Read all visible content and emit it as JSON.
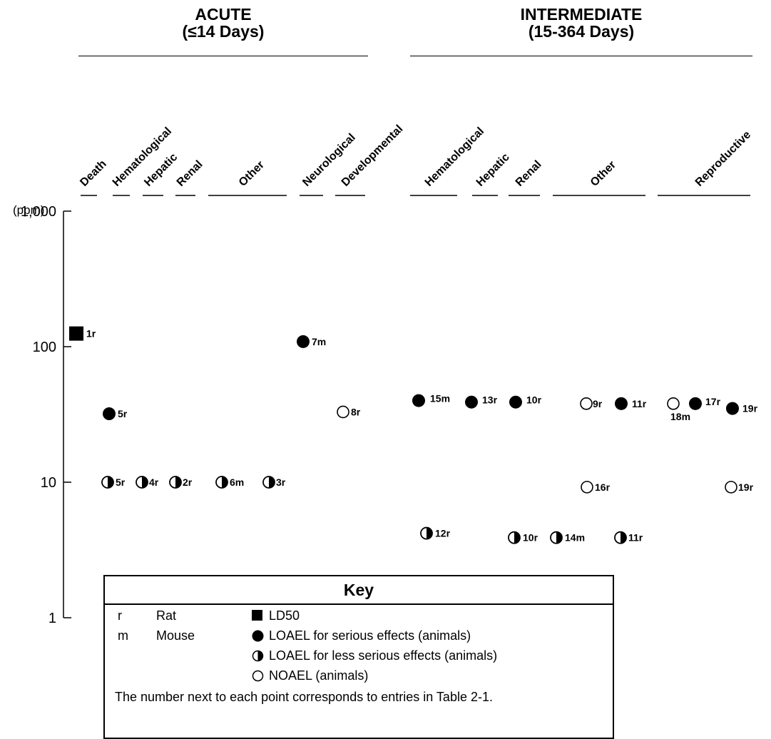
{
  "headers": {
    "acute_title": "ACUTE",
    "acute_subtitle": "(≤14 Days)",
    "intermediate_title": "INTERMEDIATE",
    "intermediate_subtitle": "(15-364 Days)"
  },
  "chart_data": {
    "type": "scatter",
    "y_unit_label": "(ppm)",
    "y_scale": "log",
    "ylim": [
      1,
      1000
    ],
    "y_ticks": [
      {
        "value": 1000,
        "label": "1,000"
      },
      {
        "value": 100,
        "label": "100"
      },
      {
        "value": 10,
        "label": "10"
      },
      {
        "value": 1,
        "label": "1"
      }
    ],
    "categories": [
      {
        "group": "acute",
        "label": "Death"
      },
      {
        "group": "acute",
        "label": "Hematological"
      },
      {
        "group": "acute",
        "label": "Hepatic"
      },
      {
        "group": "acute",
        "label": "Renal"
      },
      {
        "group": "acute",
        "label": "Other"
      },
      {
        "group": "acute",
        "label": "Neurological"
      },
      {
        "group": "acute",
        "label": "Developmental"
      },
      {
        "group": "intermediate",
        "label": "Hematological"
      },
      {
        "group": "intermediate",
        "label": "Hepatic"
      },
      {
        "group": "intermediate",
        "label": "Renal"
      },
      {
        "group": "intermediate",
        "label": "Other"
      },
      {
        "group": "intermediate",
        "label": "Reproductive"
      }
    ],
    "points": [
      {
        "category": 0,
        "value": 125,
        "symbol": "LD50",
        "label": "1r"
      },
      {
        "category": 1,
        "value": 32,
        "symbol": "LOAEL-serious",
        "label": "5r"
      },
      {
        "category": 1,
        "value": 10,
        "symbol": "LOAEL-less-serious",
        "label": "5r"
      },
      {
        "category": 2,
        "value": 10,
        "symbol": "LOAEL-less-serious",
        "label": "4r"
      },
      {
        "category": 3,
        "value": 10,
        "symbol": "LOAEL-less-serious",
        "label": "2r"
      },
      {
        "category": 4,
        "value": 10,
        "symbol": "LOAEL-less-serious",
        "label": "6m"
      },
      {
        "category": 4,
        "value": 10,
        "symbol": "LOAEL-less-serious",
        "label": "3r"
      },
      {
        "category": 5,
        "value": 109,
        "symbol": "LOAEL-serious",
        "label": "7m"
      },
      {
        "category": 6,
        "value": 33,
        "symbol": "NOAEL",
        "label": "8r"
      },
      {
        "category": 7,
        "value": 40,
        "symbol": "LOAEL-serious",
        "label": "15m"
      },
      {
        "category": 7,
        "value": 4.2,
        "symbol": "LOAEL-less-serious",
        "label": "12r"
      },
      {
        "category": 8,
        "value": 39,
        "symbol": "LOAEL-serious",
        "label": "13r"
      },
      {
        "category": 9,
        "value": 39,
        "symbol": "LOAEL-serious",
        "label": "10r"
      },
      {
        "category": 9,
        "value": 3.9,
        "symbol": "LOAEL-less-serious",
        "label": "10r"
      },
      {
        "category": 9,
        "value": 3.9,
        "symbol": "LOAEL-less-serious",
        "label": "14m"
      },
      {
        "category": 10,
        "value": 38,
        "symbol": "NOAEL",
        "label": "9r"
      },
      {
        "category": 10,
        "value": 38,
        "symbol": "LOAEL-serious",
        "label": "11r"
      },
      {
        "category": 10,
        "value": 9.2,
        "symbol": "NOAEL",
        "label": "16r"
      },
      {
        "category": 10,
        "value": 3.9,
        "symbol": "LOAEL-less-serious",
        "label": "11r"
      },
      {
        "category": 11,
        "value": 38,
        "symbol": "NOAEL",
        "label": "18m"
      },
      {
        "category": 11,
        "value": 38,
        "symbol": "LOAEL-serious",
        "label": "17r"
      },
      {
        "category": 11,
        "value": 35,
        "symbol": "LOAEL-serious",
        "label": "19r"
      },
      {
        "category": 11,
        "value": 9.2,
        "symbol": "NOAEL",
        "label": "19r"
      }
    ]
  },
  "key": {
    "title": "Key",
    "species": [
      {
        "code": "r",
        "name": "Rat"
      },
      {
        "code": "m",
        "name": "Mouse"
      }
    ],
    "symbols": [
      {
        "symbol": "LD50",
        "text": "LD50"
      },
      {
        "symbol": "LOAEL-serious",
        "text": "LOAEL for serious effects (animals)"
      },
      {
        "symbol": "LOAEL-less-serious",
        "text": "LOAEL for less serious effects (animals)"
      },
      {
        "symbol": "NOAEL",
        "text": "NOAEL (animals)"
      }
    ],
    "footnote": "The number next to each point corresponds to entries in Table 2-1."
  }
}
